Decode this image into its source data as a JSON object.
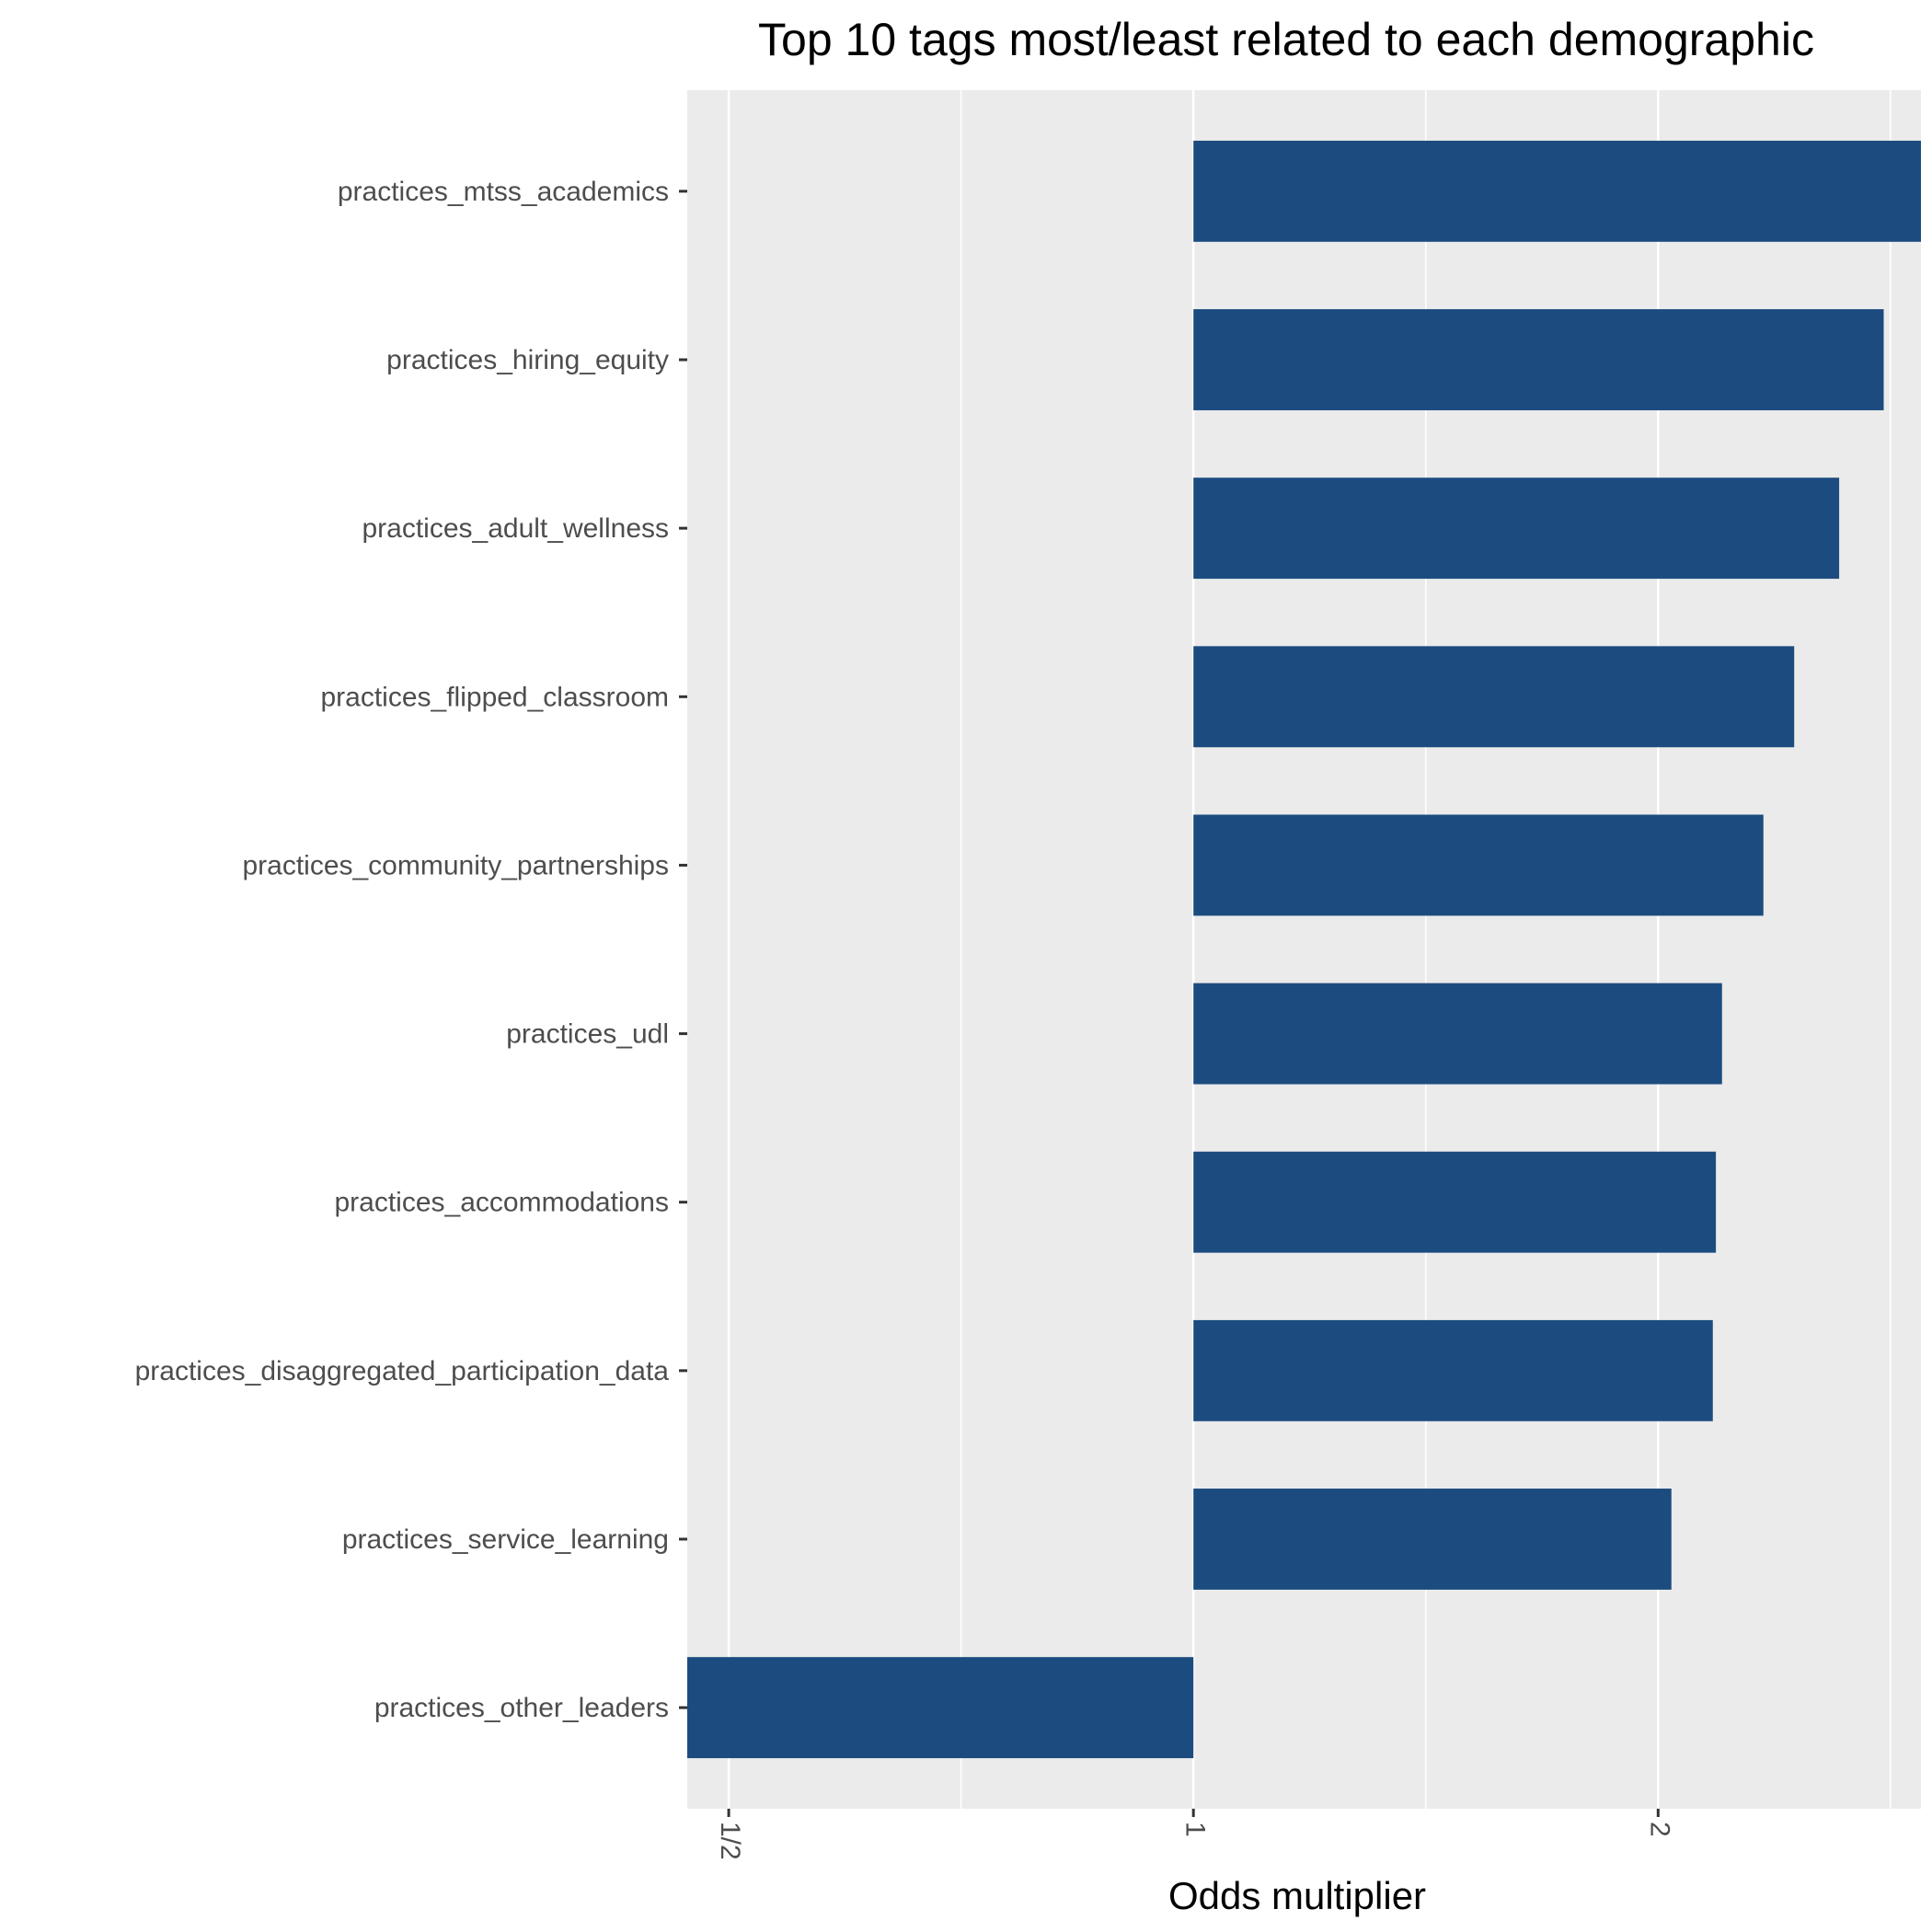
{
  "chart_data": {
    "type": "bar",
    "orientation": "horizontal",
    "title": "Top 10 tags most/least related to each demographic",
    "xlabel": "Odds multiplier",
    "ylabel": "",
    "x_scale": "log2",
    "xlim": [
      0.47,
      2.96
    ],
    "baseline": 1,
    "x_ticks": [
      {
        "value": 0.5,
        "label": "1/2"
      },
      {
        "value": 1,
        "label": "1"
      },
      {
        "value": 2,
        "label": "2"
      }
    ],
    "categories": [
      "practices_mtss_academics",
      "practices_hiring_equity",
      "practices_adult_wellness",
      "practices_flipped_classroom",
      "practices_community_partnerships",
      "practices_udl",
      "practices_accommodations",
      "practices_disaggregated_participation_data",
      "practices_service_learning",
      "practices_other_leaders"
    ],
    "values": [
      2.96,
      2.8,
      2.62,
      2.45,
      2.34,
      2.2,
      2.18,
      2.17,
      2.04,
      0.47
    ],
    "bar_color": "#1c4c7f",
    "panel_background": "#ebebeb",
    "grid": true,
    "legend": "none"
  }
}
